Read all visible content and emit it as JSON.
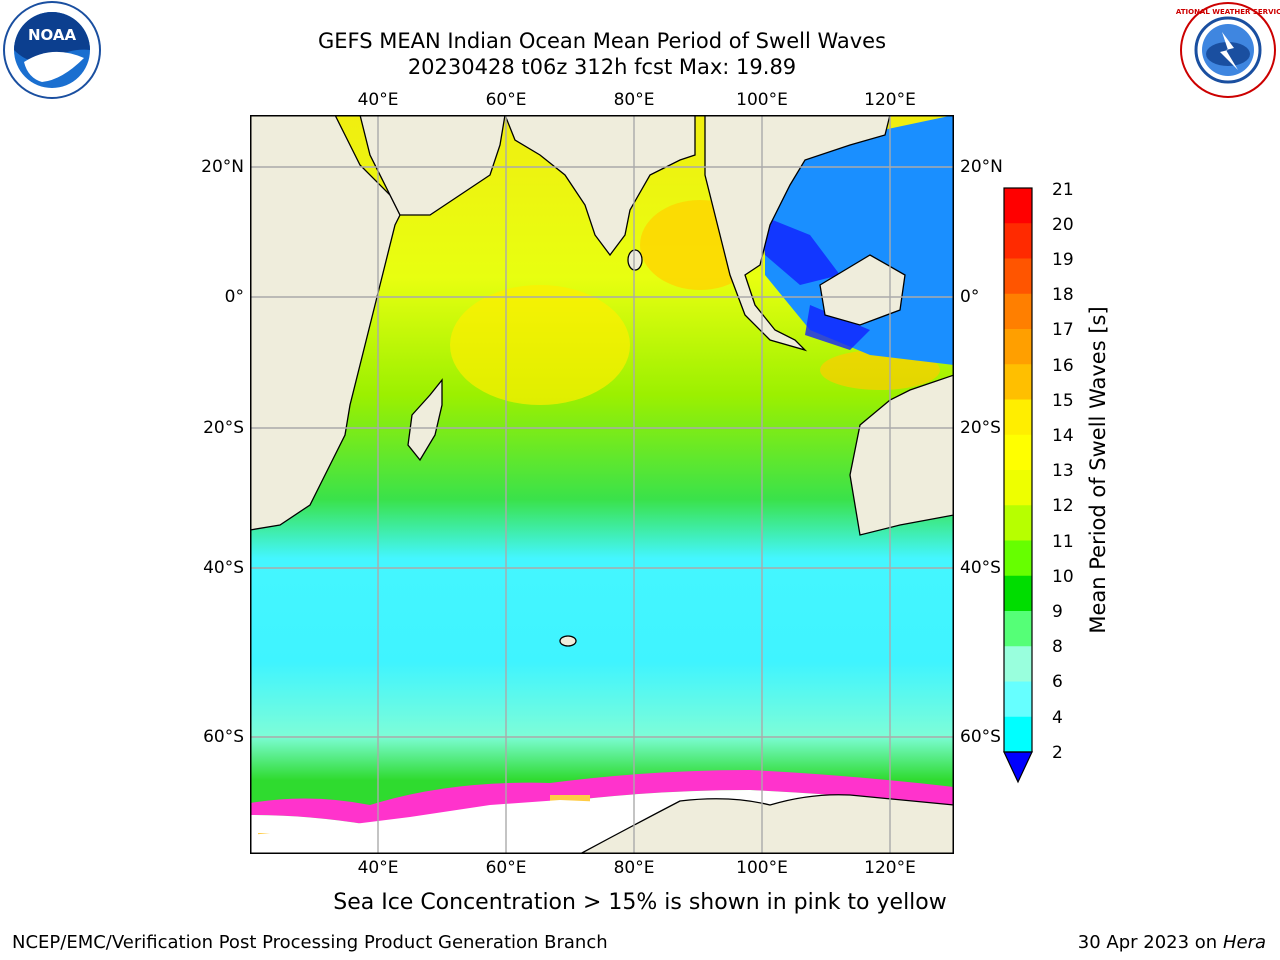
{
  "header": {
    "title_line1": "GEFS MEAN Indian Ocean Mean Period of Swell Waves",
    "title_line2": "20230428 t06z 312h fcst   Max: 19.89"
  },
  "logos": {
    "left": {
      "text": "NOAA",
      "icon": "noaa-logo-icon"
    },
    "right": {
      "text": "NATIONAL WEATHER SERVICE",
      "icon": "nws-logo-icon"
    }
  },
  "map": {
    "lon_ticks_top": [
      "40°E",
      "60°E",
      "80°E",
      "100°E",
      "120°E"
    ],
    "lon_ticks_bottom": [
      "40°E",
      "60°E",
      "80°E",
      "100°E",
      "120°E"
    ],
    "lat_ticks_left": [
      "20°N",
      "0°",
      "20°S",
      "40°S",
      "60°S"
    ],
    "lat_ticks_right": [
      "20°N",
      "0°",
      "20°S",
      "40°S",
      "60°S"
    ],
    "colors": {
      "land": "#efeddc",
      "grid": "#aaaaaa",
      "coast": "#000000",
      "ice": "#ffffff"
    }
  },
  "colorbar": {
    "label": "Mean Period of Swell Waves [s]",
    "ticks": [
      "21",
      "20",
      "19",
      "18",
      "17",
      "16",
      "15",
      "14",
      "13",
      "12",
      "11",
      "10",
      "9",
      "8",
      "6",
      "4",
      "2"
    ],
    "colors": [
      "#ff0000",
      "#ff2a00",
      "#ff5500",
      "#ff7f00",
      "#ff9f00",
      "#ffbf00",
      "#ffee00",
      "#ffff00",
      "#eeff00",
      "#b7ff00",
      "#66ff00",
      "#00dd00",
      "#55ff77",
      "#99ffdd",
      "#66ffff",
      "#00ffff",
      "#0099ff"
    ],
    "under_color": "#0000ff"
  },
  "footer": {
    "note": "Sea Ice Concentration > 15% is shown in pink to yellow",
    "left": "NCEP/EMC/Verification Post Processing Product Generation Branch",
    "right_date": "30 Apr 2023 on ",
    "right_host": "Hera"
  }
}
